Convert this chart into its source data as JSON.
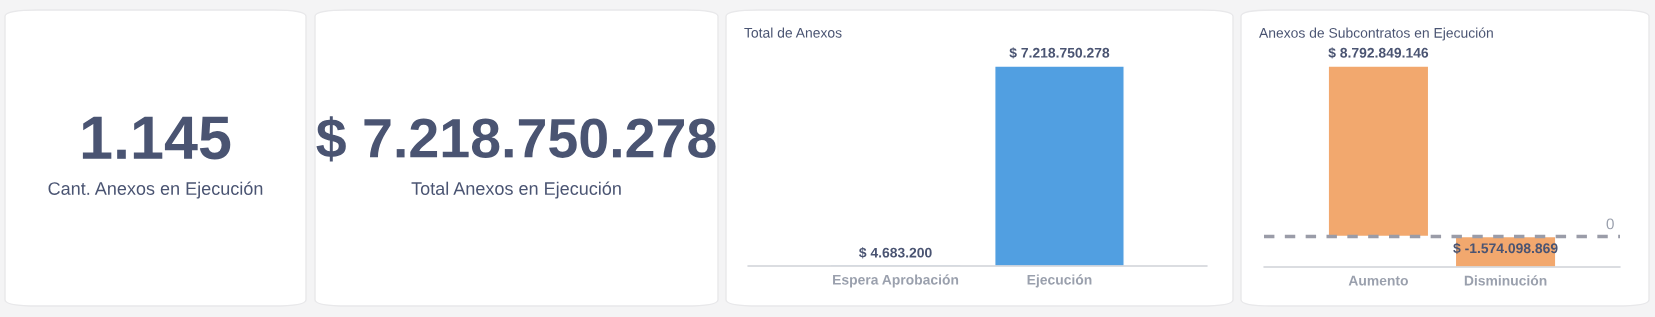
{
  "chart_data": [
    {
      "type": "other",
      "annotations": [
        "1.145",
        "Cant. Anexos en Ejecución"
      ]
    },
    {
      "type": "other",
      "annotations": [
        "$ 7.218.750.278",
        "Total Anexos en Ejecución"
      ]
    },
    {
      "type": "bar",
      "title": "Total de Anexos",
      "categories": [
        "Espera Aprobación",
        "Ejecución"
      ],
      "values": [
        4683200,
        7218750278
      ],
      "color": "#519fe1",
      "value_labels": [
        "$ 4.683.200",
        "$ 7.218.750.278"
      ],
      "tick_labels": "x",
      "grid": false,
      "legend": false
    },
    {
      "type": "bar",
      "title": "Anexos de Subcontratos en Ejecución",
      "categories": [
        "Aumento",
        "Disminución"
      ],
      "values": [
        8792849146,
        -1574098869
      ],
      "color": "#f2a86e",
      "value_labels": [
        "$ 8.792.849.146",
        "$ -1.574.098.869"
      ],
      "tick_labels": "x",
      "grid": false,
      "legend": false,
      "ref_lines": [
        {
          "axis": "y",
          "value": 0,
          "label": "0",
          "color": "#9a9ca8",
          "line_style": "dashed"
        }
      ]
    }
  ]
}
